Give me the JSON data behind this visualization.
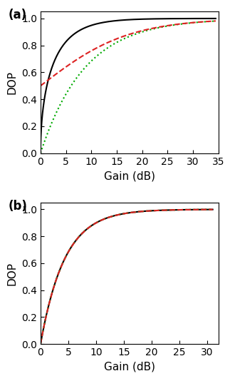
{
  "panel_a": {
    "xlim": [
      0,
      35
    ],
    "xticks": [
      0,
      5,
      10,
      15,
      20,
      25,
      30,
      35
    ],
    "ylim": [
      0,
      1.05
    ],
    "yticks": [
      0.0,
      0.2,
      0.4,
      0.6,
      0.8,
      1.0
    ],
    "xlabel": "Gain (dB)",
    "ylabel": "DOP",
    "label": "(a)"
  },
  "panel_b": {
    "xlim": [
      0,
      32
    ],
    "xticks": [
      0,
      5,
      10,
      15,
      20,
      25,
      30
    ],
    "ylim": [
      0,
      1.05
    ],
    "yticks": [
      0.0,
      0.2,
      0.4,
      0.6,
      0.8,
      1.0
    ],
    "xlabel": "Gain (dB)",
    "ylabel": "DOP",
    "label": "(b)"
  },
  "colors": {
    "black": "#000000",
    "green": "#00aa00",
    "red": "#dd2222"
  },
  "line_styles": {
    "black": "-",
    "green": ":",
    "red": "--"
  },
  "line_widths": {
    "black": 1.5,
    "green": 1.5,
    "red": 1.5
  }
}
